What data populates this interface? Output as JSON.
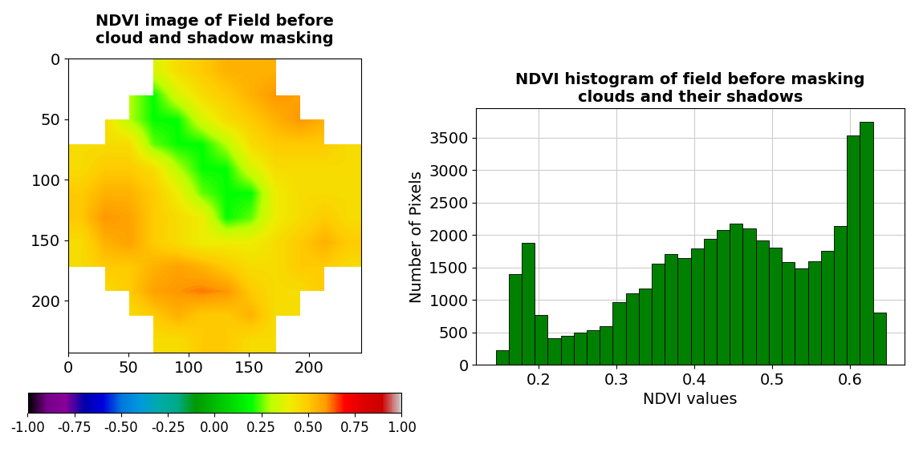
{
  "chart_data": [
    {
      "type": "heatmap",
      "title": "NDVI image of Field before\ncloud and shadow masking",
      "xlim": [
        0,
        243
      ],
      "ylim": [
        243,
        0
      ],
      "xticks": [
        0,
        50,
        100,
        150,
        200
      ],
      "yticks": [
        0,
        50,
        100,
        150,
        200
      ],
      "cells": [
        [
          null,
          null,
          null,
          0.35,
          0.45,
          0.5,
          0.55,
          0.55,
          0.55,
          null,
          null,
          null
        ],
        [
          null,
          null,
          0.3,
          0.2,
          0.35,
          0.45,
          0.5,
          0.55,
          0.6,
          0.58,
          null,
          null
        ],
        [
          null,
          0.45,
          0.3,
          0.2,
          0.2,
          0.35,
          0.45,
          0.5,
          0.55,
          0.6,
          0.55,
          null
        ],
        [
          0.45,
          0.45,
          0.45,
          0.25,
          0.2,
          0.2,
          0.3,
          0.45,
          0.5,
          0.5,
          0.5,
          0.45
        ],
        [
          0.45,
          0.5,
          0.5,
          0.45,
          0.3,
          0.2,
          0.2,
          0.35,
          0.45,
          0.45,
          0.45,
          0.45
        ],
        [
          0.5,
          0.55,
          0.55,
          0.5,
          0.4,
          0.25,
          0.2,
          0.2,
          0.4,
          0.45,
          0.45,
          0.45
        ],
        [
          0.5,
          0.6,
          0.58,
          0.5,
          0.45,
          0.4,
          0.2,
          0.25,
          0.4,
          0.45,
          0.5,
          0.45
        ],
        [
          0.45,
          0.55,
          0.58,
          0.5,
          0.45,
          0.4,
          0.4,
          0.4,
          0.45,
          0.5,
          0.55,
          0.5
        ],
        [
          0.45,
          0.5,
          0.5,
          0.55,
          0.58,
          0.55,
          0.5,
          0.45,
          0.45,
          0.5,
          0.5,
          0.45
        ],
        [
          null,
          0.45,
          0.5,
          0.58,
          0.6,
          0.62,
          0.6,
          0.5,
          0.45,
          0.45,
          0.5,
          null
        ],
        [
          null,
          null,
          0.45,
          0.5,
          0.55,
          0.5,
          0.5,
          0.55,
          0.45,
          0.45,
          null,
          null
        ],
        [
          null,
          null,
          null,
          0.45,
          0.45,
          0.5,
          0.5,
          0.45,
          0.45,
          null,
          null,
          null
        ]
      ],
      "colorbar_lim": [
        -1,
        1
      ],
      "colorbar_ticks": [
        {
          "value": -1,
          "label": "-1.00"
        },
        {
          "value": -0.75,
          "label": "-0.75"
        },
        {
          "value": -0.5,
          "label": "-0.50"
        },
        {
          "value": -0.25,
          "label": "-0.25"
        },
        {
          "value": 0,
          "label": "0.00"
        },
        {
          "value": 0.25,
          "label": "0.25"
        },
        {
          "value": 0.5,
          "label": "0.50"
        },
        {
          "value": 0.75,
          "label": "0.75"
        },
        {
          "value": 1,
          "label": "1.00"
        }
      ]
    },
    {
      "type": "histogram",
      "title": "NDVI histogram of field before masking\nclouds and their shadows",
      "x_label": "NDVI values",
      "y_label": "Number of Pixels",
      "bins": [
        0.145,
        0.1617,
        0.1784,
        0.1951,
        0.2118,
        0.2285,
        0.2452,
        0.2619,
        0.2786,
        0.2953,
        0.312,
        0.3287,
        0.3454,
        0.3621,
        0.3788,
        0.3955,
        0.4122,
        0.4289,
        0.4456,
        0.4623,
        0.479,
        0.4957,
        0.5124,
        0.5291,
        0.5458,
        0.5625,
        0.5792,
        0.5959,
        0.6126,
        0.6293,
        0.646
      ],
      "counts": [
        220,
        1400,
        1880,
        770,
        410,
        450,
        490,
        530,
        600,
        960,
        1100,
        1180,
        1560,
        1710,
        1640,
        1790,
        1940,
        2080,
        2170,
        2100,
        1920,
        1800,
        1580,
        1480,
        1590,
        1760,
        2140,
        3530,
        3750,
        810
      ],
      "color": "green",
      "xlim": [
        0.12,
        0.67
      ],
      "ylim": [
        0,
        3950
      ],
      "xticks": [
        0.2,
        0.3,
        0.4,
        0.5,
        0.6
      ],
      "yticks": [
        0,
        500,
        1000,
        1500,
        2000,
        2500,
        3000,
        3500
      ],
      "grid": true
    }
  ]
}
